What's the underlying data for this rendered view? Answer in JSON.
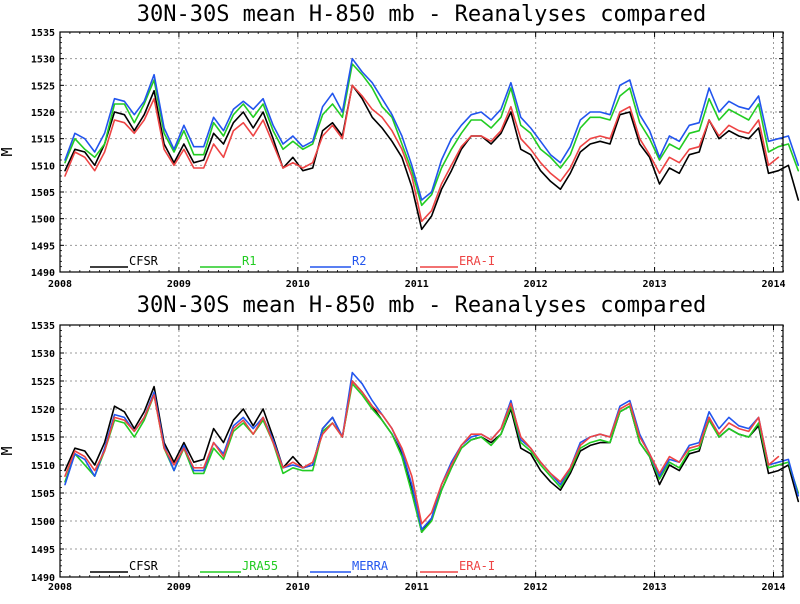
{
  "chart_data": [
    {
      "type": "line",
      "title": "30N-30S mean H-850 mb - Reanalyses compared",
      "ylabel": "M",
      "xlabel": "",
      "xlim": [
        2008,
        2014.08
      ],
      "ylim": [
        1490,
        1535
      ],
      "grid": true,
      "legend_position": "bottom-left",
      "x_ticks": [
        "2008",
        "2009",
        "2010",
        "2011",
        "2012",
        "2013",
        "2014"
      ],
      "y_ticks": [
        "1490",
        "1495",
        "1500",
        "1505",
        "1510",
        "1515",
        "1520",
        "1525",
        "1530",
        "1535"
      ],
      "series": [
        {
          "name": "CFSR",
          "color": "#000000",
          "values": [
            1509.0,
            1513.0,
            1512.5,
            1510.0,
            1514.0,
            1520.0,
            1519.5,
            1516.5,
            1519.5,
            1524.0,
            1514.0,
            1510.5,
            1514.0,
            1510.5,
            1511.0,
            1516.0,
            1514.0,
            1518.0,
            1520.0,
            1517.0,
            1520.0,
            1515.0,
            1509.5,
            1511.5,
            1509.0,
            1509.5,
            1516.5,
            1518.0,
            1515.5,
            1525.0,
            1522.5,
            1519.0,
            1517.0,
            1514.5,
            1511.5,
            1506.0,
            1498.0,
            1500.5,
            1505.5,
            1509.0,
            1513.0,
            1515.5,
            1515.5,
            1514.0,
            1516.0,
            1520.0,
            1513.0,
            1512.0,
            1509.0,
            1507.0,
            1505.5,
            1508.5,
            1512.5,
            1514.0,
            1514.5,
            1514.0,
            1519.5,
            1520.0,
            1514.0,
            1511.5,
            1506.5,
            1509.5,
            1508.5,
            1512.0,
            1512.5,
            1518.5,
            1515.0,
            1516.5,
            1515.5,
            1515.0,
            1517.0,
            1508.5,
            1509.0,
            1510.0,
            1503.5
          ]
        },
        {
          "name": "R1",
          "color": "#22cc22",
          "values": [
            1510.5,
            1515.0,
            1513.0,
            1511.5,
            1514.0,
            1521.5,
            1521.5,
            1518.0,
            1521.5,
            1526.0,
            1516.0,
            1512.5,
            1516.5,
            1512.0,
            1512.0,
            1518.0,
            1515.5,
            1519.5,
            1521.5,
            1519.0,
            1521.5,
            1516.5,
            1513.0,
            1514.5,
            1513.0,
            1514.0,
            1519.5,
            1521.5,
            1519.0,
            1529.0,
            1527.0,
            1524.5,
            1521.0,
            1519.0,
            1514.0,
            1509.0,
            1502.5,
            1504.5,
            1509.5,
            1513.0,
            1516.0,
            1518.5,
            1518.5,
            1517.0,
            1519.0,
            1524.5,
            1517.5,
            1516.0,
            1513.0,
            1511.5,
            1509.5,
            1512.0,
            1517.0,
            1519.0,
            1519.0,
            1518.5,
            1523.0,
            1524.5,
            1518.0,
            1515.0,
            1511.0,
            1514.0,
            1513.0,
            1516.0,
            1516.5,
            1522.5,
            1518.5,
            1520.5,
            1519.5,
            1518.5,
            1521.5,
            1512.5,
            1513.5,
            1514.0,
            1509.0
          ]
        },
        {
          "name": "R2",
          "color": "#2255ee",
          "values": [
            1511.0,
            1516.0,
            1515.0,
            1512.5,
            1516.0,
            1522.5,
            1522.0,
            1519.5,
            1522.0,
            1527.0,
            1517.0,
            1513.0,
            1517.5,
            1513.5,
            1513.5,
            1519.0,
            1516.5,
            1520.5,
            1522.0,
            1520.5,
            1522.5,
            1517.5,
            1514.0,
            1515.5,
            1513.5,
            1514.5,
            1521.0,
            1523.5,
            1520.0,
            1530.0,
            1527.5,
            1525.5,
            1522.5,
            1519.5,
            1515.5,
            1510.0,
            1503.5,
            1505.0,
            1511.0,
            1515.0,
            1517.5,
            1519.5,
            1520.0,
            1518.5,
            1520.5,
            1525.5,
            1519.0,
            1517.0,
            1514.5,
            1512.0,
            1510.5,
            1513.5,
            1518.5,
            1520.0,
            1520.0,
            1519.5,
            1525.0,
            1526.0,
            1519.5,
            1516.5,
            1511.5,
            1515.5,
            1514.5,
            1517.5,
            1518.0,
            1524.5,
            1520.0,
            1522.0,
            1521.0,
            1520.5,
            1523.0,
            1514.5,
            1515.0,
            1515.5,
            1510.0
          ]
        },
        {
          "name": "ERA-I",
          "color": "#ee4444",
          "values": [
            1508.0,
            1512.5,
            1511.5,
            1509.0,
            1512.5,
            1518.5,
            1518.0,
            1516.0,
            1518.5,
            1522.5,
            1513.0,
            1510.0,
            1513.0,
            1509.5,
            1509.5,
            1514.0,
            1511.5,
            1516.5,
            1518.0,
            1515.5,
            1518.5,
            1514.0,
            1509.5,
            1510.5,
            1509.5,
            1510.5,
            1515.5,
            1517.5,
            1515.0,
            1525.0,
            1523.0,
            1520.5,
            1519.0,
            1516.5,
            1513.0,
            1508.0,
            1499.5,
            1501.5,
            1506.5,
            1510.0,
            1513.5,
            1515.5,
            1515.5,
            1514.5,
            1516.5,
            1521.0,
            1515.0,
            1513.0,
            1510.5,
            1508.5,
            1507.0,
            1509.5,
            1513.5,
            1515.0,
            1515.5,
            1515.0,
            1520.0,
            1521.0,
            1515.0,
            1512.0,
            1508.5,
            1511.5,
            1510.5,
            1513.0,
            1513.5,
            1518.5,
            1515.5,
            1517.5,
            1516.5,
            1516.0,
            1518.5,
            1510.0,
            1511.5
          ]
        }
      ]
    },
    {
      "type": "line",
      "title": "30N-30S mean H-850 mb - Reanalyses compared",
      "ylabel": "M",
      "xlabel": "",
      "xlim": [
        2008,
        2014.08
      ],
      "ylim": [
        1490,
        1535
      ],
      "grid": true,
      "legend_position": "bottom-left",
      "x_ticks": [
        "2008",
        "2009",
        "2010",
        "2011",
        "2012",
        "2013",
        "2014"
      ],
      "y_ticks": [
        "1490",
        "1495",
        "1500",
        "1505",
        "1510",
        "1515",
        "1520",
        "1525",
        "1530",
        "1535"
      ],
      "series": [
        {
          "name": "CFSR",
          "color": "#000000",
          "values": [
            1509.0,
            1513.0,
            1512.5,
            1510.0,
            1514.0,
            1520.5,
            1519.5,
            1516.5,
            1519.5,
            1524.0,
            1514.0,
            1510.5,
            1514.0,
            1510.5,
            1511.0,
            1516.5,
            1514.0,
            1518.0,
            1520.0,
            1517.0,
            1520.0,
            1515.0,
            1509.5,
            1511.5,
            1509.5,
            1510.0,
            1516.5,
            1518.5,
            1515.0,
            1525.0,
            1523.0,
            1520.5,
            1518.0,
            1515.5,
            1512.0,
            1506.0,
            1498.0,
            1500.5,
            1505.5,
            1509.5,
            1513.0,
            1514.5,
            1515.0,
            1514.0,
            1515.5,
            1520.0,
            1513.0,
            1512.0,
            1509.0,
            1507.0,
            1505.5,
            1508.5,
            1512.5,
            1513.5,
            1514.0,
            1514.0,
            1519.5,
            1520.5,
            1514.0,
            1511.5,
            1506.5,
            1510.0,
            1509.0,
            1512.0,
            1512.5,
            1518.5,
            1515.0,
            1516.5,
            1515.5,
            1515.0,
            1517.0,
            1508.5,
            1509.0,
            1510.0,
            1503.5
          ]
        },
        {
          "name": "JRA55",
          "color": "#22cc22",
          "values": [
            1507.0,
            1512.0,
            1510.0,
            1508.0,
            1512.5,
            1518.0,
            1517.5,
            1515.0,
            1518.0,
            1522.5,
            1513.0,
            1509.0,
            1513.0,
            1508.5,
            1508.5,
            1513.0,
            1511.0,
            1516.0,
            1517.5,
            1515.5,
            1518.0,
            1514.0,
            1508.5,
            1509.5,
            1509.0,
            1509.0,
            1516.0,
            1517.5,
            1515.0,
            1524.5,
            1522.5,
            1520.0,
            1518.0,
            1515.5,
            1511.5,
            1505.0,
            1498.0,
            1500.0,
            1505.5,
            1509.5,
            1513.0,
            1514.5,
            1515.0,
            1513.5,
            1515.5,
            1520.5,
            1514.0,
            1512.5,
            1510.0,
            1508.0,
            1506.0,
            1509.0,
            1513.0,
            1514.0,
            1514.5,
            1514.0,
            1519.5,
            1520.5,
            1514.0,
            1511.5,
            1507.5,
            1510.5,
            1509.5,
            1512.5,
            1513.0,
            1518.0,
            1515.0,
            1516.5,
            1515.5,
            1515.0,
            1517.5,
            1509.5,
            1510.0,
            1510.5,
            1505.0
          ]
        },
        {
          "name": "MERRA",
          "color": "#2255ee",
          "values": [
            1506.5,
            1512.0,
            1511.0,
            1508.0,
            1513.0,
            1519.0,
            1518.5,
            1516.0,
            1518.5,
            1523.0,
            1513.5,
            1509.0,
            1513.5,
            1509.0,
            1509.0,
            1514.0,
            1512.0,
            1517.0,
            1518.5,
            1516.5,
            1518.5,
            1514.5,
            1509.5,
            1510.0,
            1509.5,
            1510.0,
            1516.5,
            1518.5,
            1515.0,
            1526.5,
            1524.5,
            1521.5,
            1519.0,
            1516.5,
            1512.5,
            1506.5,
            1498.5,
            1500.5,
            1506.5,
            1510.5,
            1513.5,
            1515.0,
            1515.5,
            1514.5,
            1516.5,
            1521.5,
            1514.5,
            1513.0,
            1510.5,
            1508.5,
            1506.5,
            1509.5,
            1514.0,
            1515.0,
            1515.5,
            1515.0,
            1520.5,
            1521.5,
            1515.5,
            1512.0,
            1508.0,
            1511.0,
            1510.5,
            1513.5,
            1514.0,
            1519.5,
            1516.5,
            1518.5,
            1517.0,
            1516.5,
            1518.5,
            1510.0,
            1510.5,
            1511.0,
            1504.5
          ]
        },
        {
          "name": "ERA-I",
          "color": "#ee4444",
          "values": [
            1508.0,
            1512.5,
            1511.5,
            1509.0,
            1512.5,
            1518.5,
            1518.0,
            1516.0,
            1518.5,
            1522.5,
            1513.0,
            1510.0,
            1513.0,
            1509.5,
            1509.5,
            1514.0,
            1511.5,
            1516.5,
            1518.0,
            1515.5,
            1518.5,
            1514.0,
            1509.5,
            1510.5,
            1509.5,
            1510.5,
            1515.5,
            1517.5,
            1515.0,
            1525.0,
            1523.0,
            1520.5,
            1519.0,
            1516.5,
            1513.0,
            1508.0,
            1499.5,
            1501.5,
            1506.5,
            1510.0,
            1513.5,
            1515.5,
            1515.5,
            1514.5,
            1516.5,
            1521.0,
            1515.0,
            1513.0,
            1510.5,
            1508.5,
            1507.0,
            1509.5,
            1513.5,
            1515.0,
            1515.5,
            1515.0,
            1520.0,
            1521.0,
            1515.0,
            1512.0,
            1508.5,
            1511.5,
            1510.5,
            1513.0,
            1513.5,
            1518.5,
            1515.5,
            1517.5,
            1516.5,
            1516.0,
            1518.5,
            1510.0,
            1511.5
          ]
        }
      ]
    }
  ]
}
